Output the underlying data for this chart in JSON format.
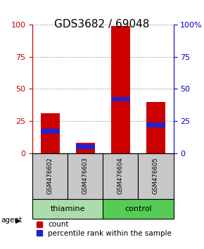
{
  "title": "GDS3682 / 69048",
  "samples": [
    "GSM476602",
    "GSM476603",
    "GSM476604",
    "GSM476605"
  ],
  "count_values": [
    31,
    8,
    99,
    40
  ],
  "percentile_values": [
    17,
    5,
    42,
    22
  ],
  "bar_width": 0.55,
  "groups": [
    {
      "label": "thiamine",
      "color_light": "#AAEEA0",
      "color_mid": "#66CC66"
    },
    {
      "label": "control",
      "color_light": "#66DD66",
      "color_mid": "#33BB33"
    }
  ],
  "ylim": [
    0,
    100
  ],
  "yticks": [
    0,
    25,
    50,
    75,
    100
  ],
  "left_axis_color": "#CC0000",
  "right_axis_color": "#0000CC",
  "bar_color_red": "#CC0000",
  "bar_color_blue": "#2222CC",
  "grid_color": "#777777",
  "sample_box_color": "#C8C8C8",
  "title_fontsize": 11,
  "tick_fontsize": 8,
  "legend_fontsize": 7.5,
  "thiamine_color": "#AADDAA",
  "control_color": "#55CC55"
}
